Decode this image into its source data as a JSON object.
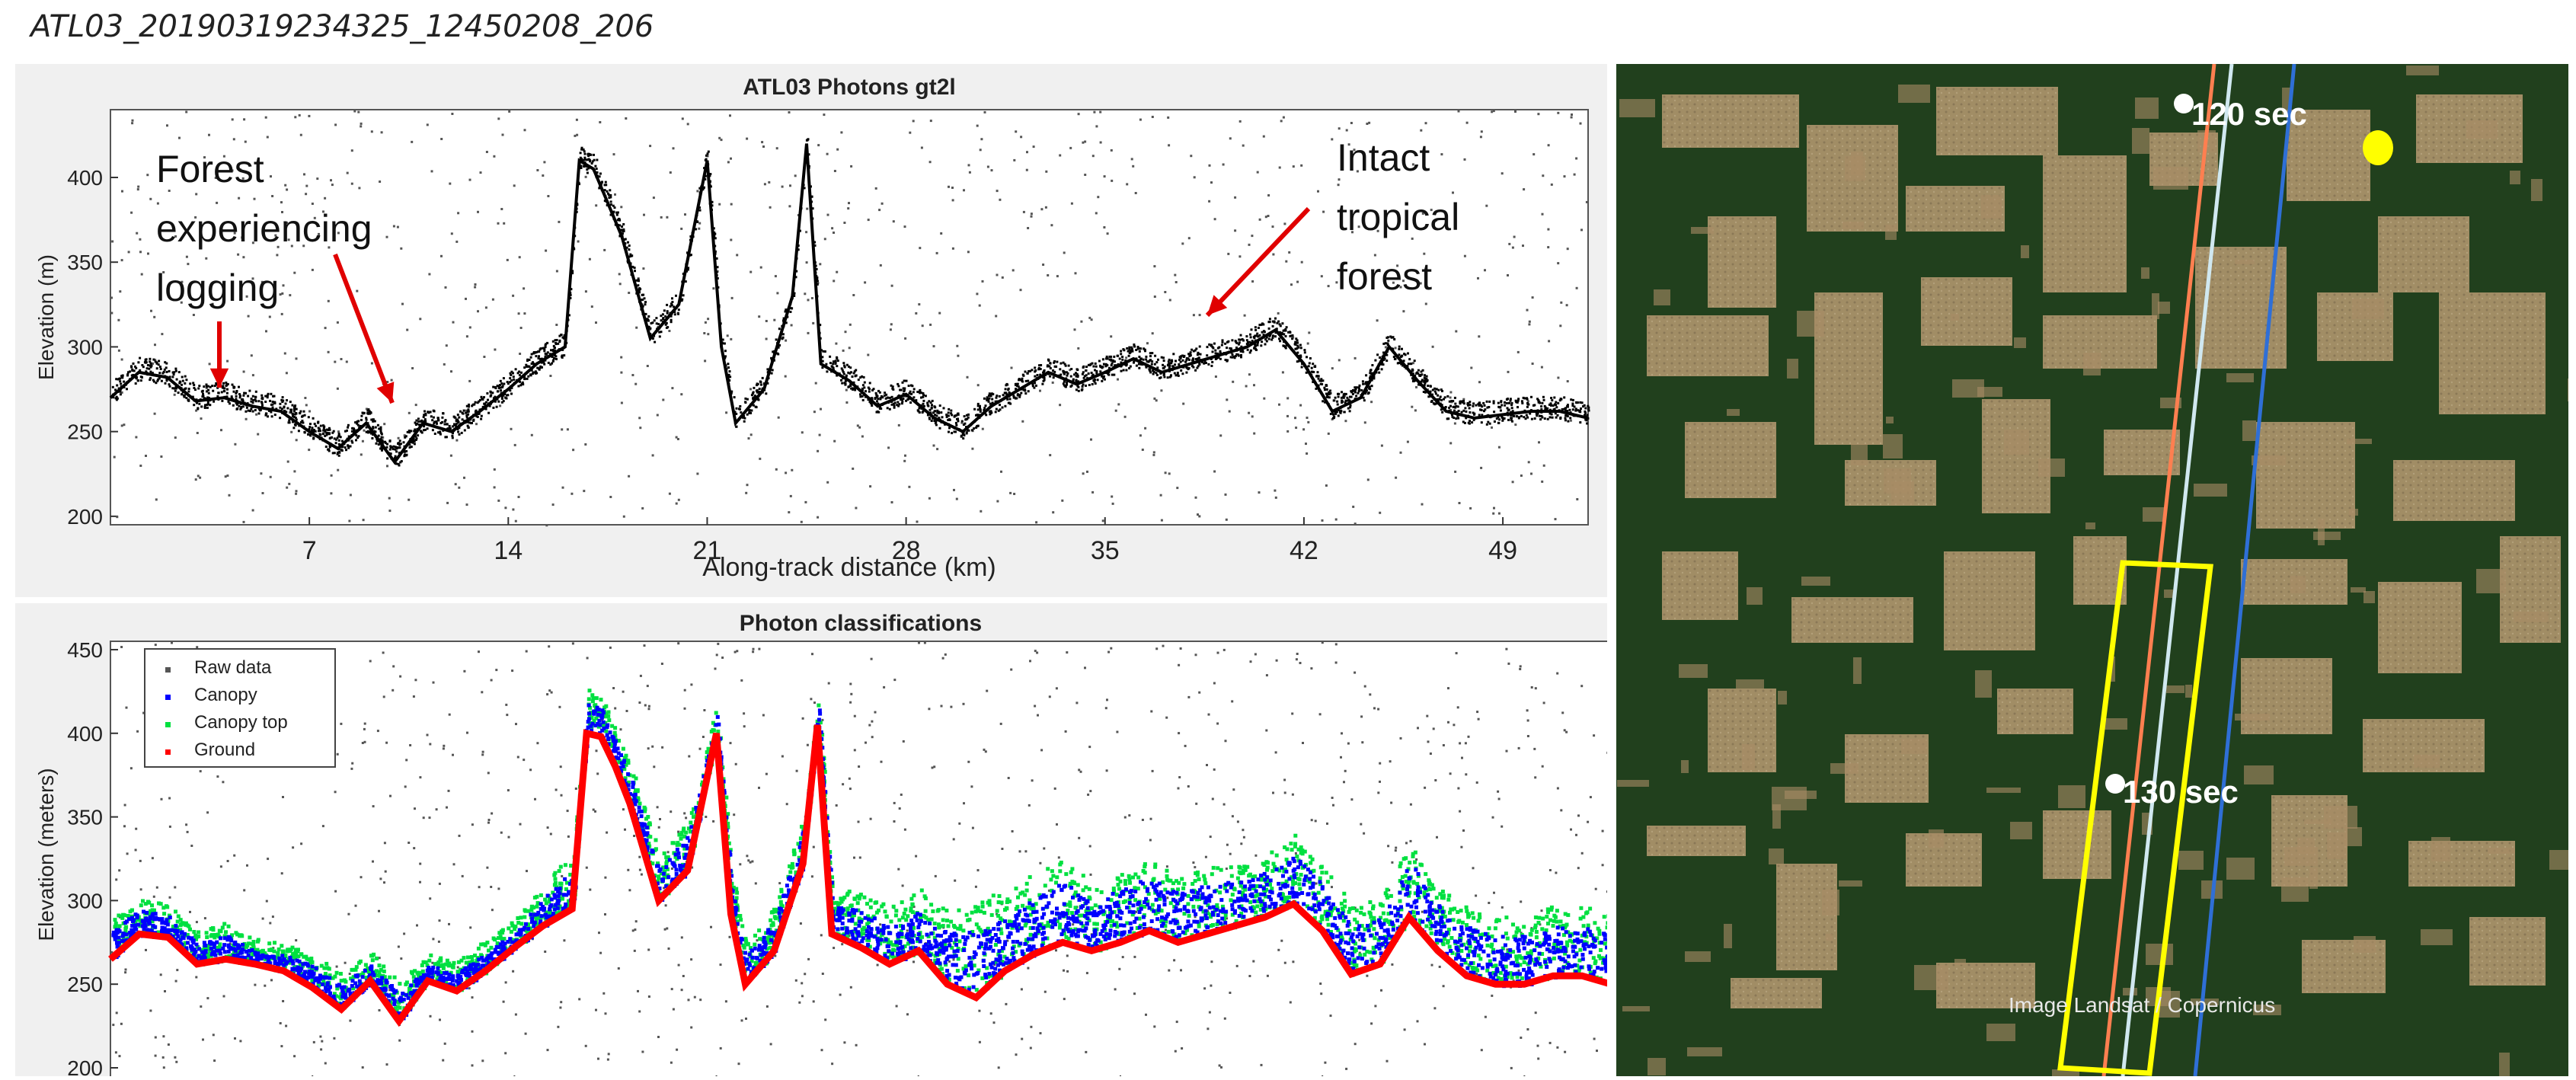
{
  "header": {
    "title": "ATL03_20190319234325_12450208_206"
  },
  "chart_data": [
    {
      "type": "scatter",
      "title": "ATL03 Photons gt2l",
      "xlabel": "Along-track distance (km)",
      "ylabel": "Elevation (m)",
      "xlim": [
        0,
        52
      ],
      "ylim": [
        195,
        440
      ],
      "xticks": [
        7,
        14,
        21,
        28,
        35,
        42,
        49
      ],
      "yticks": [
        200,
        250,
        300,
        350,
        400
      ],
      "grid": false,
      "series": [
        {
          "x": [
            0,
            1,
            2,
            3,
            4,
            5,
            6,
            7,
            8,
            9,
            10,
            11,
            12,
            13,
            14,
            15,
            16,
            16.5,
            17,
            17.5,
            18,
            19,
            20,
            21,
            21.5,
            22,
            23,
            24,
            24.5,
            25,
            26,
            27,
            28,
            29,
            30,
            31,
            32,
            33,
            34,
            35,
            36,
            37,
            38,
            39,
            40,
            41,
            42,
            43,
            44,
            45,
            46,
            47,
            48,
            49,
            50,
            51,
            52
          ],
          "y": [
            270,
            285,
            282,
            268,
            270,
            265,
            262,
            250,
            240,
            255,
            232,
            255,
            250,
            262,
            275,
            290,
            300,
            410,
            405,
            385,
            365,
            305,
            325,
            410,
            300,
            255,
            275,
            330,
            420,
            290,
            280,
            265,
            272,
            258,
            250,
            265,
            275,
            285,
            278,
            285,
            293,
            285,
            290,
            295,
            300,
            310,
            290,
            262,
            270,
            300,
            280,
            262,
            258,
            260,
            262,
            262,
            258
          ]
        }
      ],
      "annotations": [
        {
          "text": [
            "Forest",
            "experiencing",
            "logging"
          ]
        },
        {
          "text": [
            "Intact",
            "tropical",
            "forest"
          ]
        }
      ]
    },
    {
      "type": "scatter",
      "title": "Photon classifications",
      "ylabel": "Elevation (meters)",
      "xlim": [
        0,
        52
      ],
      "ylim": [
        200,
        455
      ],
      "yticks": [
        200,
        250,
        300,
        350,
        400,
        450
      ],
      "legend_position": "top-left",
      "series": [
        {
          "name": "Raw data",
          "color": "#555555",
          "values_note": ""
        },
        {
          "name": "Canopy",
          "color": "#0000ff",
          "y": [
            285,
            295,
            292,
            275,
            280,
            270,
            268,
            262,
            252,
            262,
            245,
            262,
            258,
            270,
            282,
            305,
            320,
            420,
            415,
            395,
            375,
            320,
            340,
            415,
            312,
            268,
            290,
            345,
            420,
            300,
            295,
            285,
            295,
            282,
            282,
            292,
            302,
            312,
            300,
            308,
            315,
            305,
            312,
            312,
            318,
            328,
            310,
            285,
            290,
            325,
            298,
            285,
            280,
            280,
            285,
            285,
            280
          ]
        },
        {
          "name": "Canopy top",
          "color": "#00e040",
          "y": [
            292,
            302,
            298,
            282,
            288,
            278,
            275,
            268,
            258,
            270,
            252,
            270,
            265,
            278,
            290,
            312,
            330,
            428,
            422,
            402,
            382,
            330,
            348,
            420,
            320,
            275,
            298,
            352,
            425,
            310,
            305,
            298,
            308,
            295,
            300,
            308,
            318,
            325,
            312,
            318,
            325,
            315,
            322,
            322,
            328,
            340,
            320,
            300,
            302,
            335,
            308,
            298,
            292,
            290,
            298,
            298,
            292
          ]
        },
        {
          "name": "Ground",
          "color": "#ff0000",
          "y": [
            265,
            280,
            278,
            262,
            265,
            262,
            258,
            248,
            235,
            252,
            228,
            252,
            246,
            258,
            272,
            285,
            295,
            400,
            398,
            380,
            358,
            300,
            318,
            400,
            292,
            250,
            270,
            322,
            405,
            280,
            272,
            262,
            270,
            250,
            242,
            258,
            268,
            275,
            270,
            275,
            282,
            275,
            280,
            285,
            290,
            298,
            282,
            256,
            262,
            290,
            270,
            255,
            250,
            250,
            255,
            255,
            250
          ]
        }
      ]
    }
  ],
  "map": {
    "labels": {
      "t120": "120 sec",
      "t130": "130 sec",
      "attribution": "Image Landsat / Copernicus"
    },
    "colors": {
      "track_orange": "#ff7f50",
      "track_white": "#d0e8f0",
      "track_blue": "#2f6fd6",
      "box": "#ffff00",
      "marker_yellow": "#ffff00"
    }
  }
}
